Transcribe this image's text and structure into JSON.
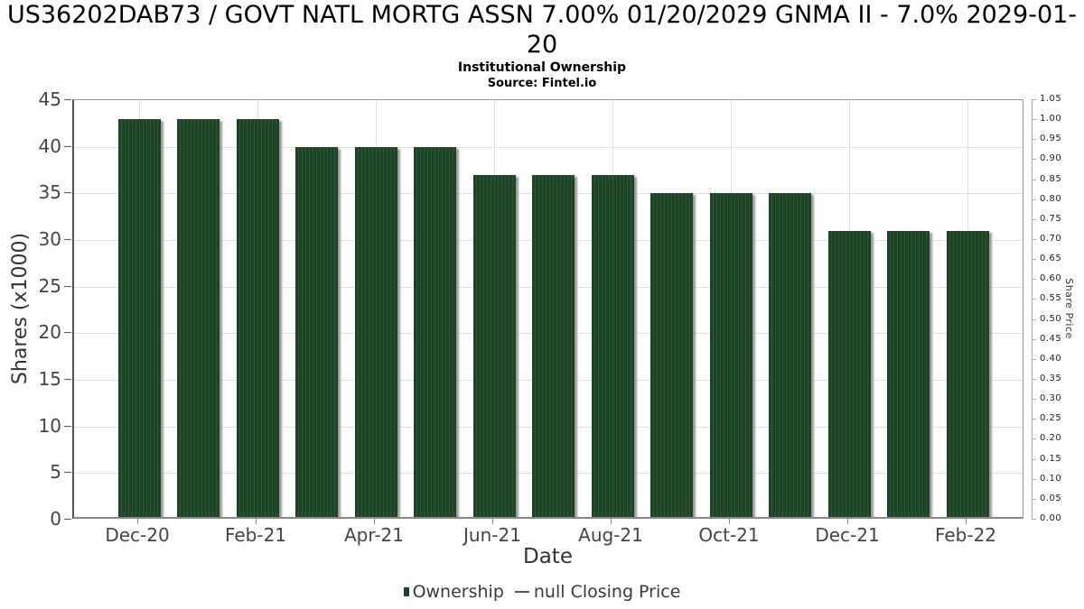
{
  "chart_data": {
    "type": "bar",
    "title": "US36202DAB73 / GOVT NATL MORTG ASSN 7.00% 01/20/2029 GNMA II - 7.0% 2029-01-20",
    "subtitle": "Institutional Ownership",
    "source": "Source: Fintel.io",
    "xlabel": "Date",
    "ylabel_left": "Shares (x1000)",
    "ylabel_right": "Share Price",
    "categories": [
      "Dec-20",
      "Jan-21",
      "Feb-21",
      "Mar-21",
      "Apr-21",
      "May-21",
      "Jun-21",
      "Jul-21",
      "Aug-21",
      "Sep-21",
      "Oct-21",
      "Nov-21",
      "Dec-21",
      "Jan-22",
      "Feb-22"
    ],
    "values": [
      43,
      43,
      43,
      40,
      40,
      40,
      37,
      37,
      37,
      35,
      35,
      35,
      31,
      31,
      31
    ],
    "x_tick_labels": [
      "Dec-20",
      "Feb-21",
      "Apr-21",
      "Jun-21",
      "Aug-21",
      "Oct-21",
      "Dec-21",
      "Feb-22"
    ],
    "x_tick_bar_indices": [
      0,
      2,
      4,
      6,
      8,
      10,
      12,
      14
    ],
    "ylim_left": [
      0,
      45
    ],
    "y_ticks_left": [
      0,
      5,
      10,
      15,
      20,
      25,
      30,
      35,
      40,
      45
    ],
    "ylim_right": [
      0,
      1.05
    ],
    "y_ticks_right": [
      "0.00",
      "0.05",
      "0.10",
      "0.15",
      "0.20",
      "0.25",
      "0.30",
      "0.35",
      "0.40",
      "0.45",
      "0.50",
      "0.55",
      "0.60",
      "0.65",
      "0.70",
      "0.75",
      "0.80",
      "0.85",
      "0.90",
      "0.95",
      "1.00",
      "1.05"
    ],
    "grid": true,
    "legend_position": "bottom",
    "bar_color": "#1d4424",
    "bar_stripe_color": "#2f5a35",
    "shadow_color": "#9a9a9a",
    "legend": {
      "items": [
        {
          "label": "Ownership",
          "marker": "square",
          "color": "#1d4424"
        },
        {
          "label": "null Closing Price",
          "marker": "dash",
          "color": "#555555"
        }
      ]
    }
  }
}
